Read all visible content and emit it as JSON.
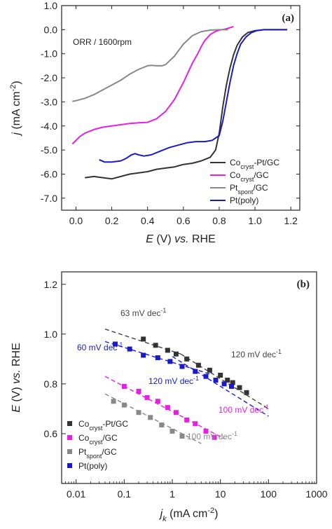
{
  "chart_data": [
    {
      "panel_tag": "(a)",
      "type": "line",
      "annotation": "ORR / 1600rpm",
      "xlabel": {
        "italic": "E",
        "mid": " (V) ",
        "italic2": "vs.",
        "tail": " RHE"
      },
      "ylabel": {
        "italic": "j",
        "tail": " (mA cm",
        "sup": "-2",
        "close": ")"
      },
      "xlim": [
        -0.08,
        1.25
      ],
      "ylim": [
        -7.5,
        1.0
      ],
      "xticks": [
        0.0,
        0.2,
        0.4,
        0.6,
        0.8,
        1.0,
        1.2
      ],
      "xtick_labels": [
        "0.0",
        "0.2",
        "0.4",
        "0.6",
        "0.8",
        "1.0",
        "1.2"
      ],
      "yticks": [
        1.0,
        0.0,
        -1.0,
        -2.0,
        -3.0,
        -4.0,
        -5.0,
        -6.0,
        -7.0
      ],
      "ytick_labels": [
        "1.0",
        "0.0",
        "-1.0",
        "-2.0",
        "-3.0",
        "-4.0",
        "-5.0",
        "-6.0",
        "-7.0"
      ],
      "legend_position": "bottom-right",
      "series": [
        {
          "name": {
            "base": "Co",
            "sub": "cryst",
            "tail": "-Pt/GC"
          },
          "color": "#333333",
          "x": [
            0.05,
            0.1,
            0.15,
            0.2,
            0.25,
            0.3,
            0.35,
            0.4,
            0.45,
            0.5,
            0.55,
            0.6,
            0.65,
            0.7,
            0.75,
            0.78,
            0.8,
            0.82,
            0.84,
            0.86,
            0.88,
            0.9,
            0.93,
            0.96,
            1.0,
            1.05,
            1.1,
            1.15,
            1.18
          ],
          "y": [
            -6.15,
            -6.1,
            -6.15,
            -6.2,
            -6.1,
            -6.0,
            -5.95,
            -5.9,
            -5.8,
            -5.75,
            -5.7,
            -5.6,
            -5.55,
            -5.45,
            -5.3,
            -5.0,
            -4.3,
            -3.2,
            -2.3,
            -1.6,
            -1.05,
            -0.65,
            -0.3,
            -0.12,
            -0.04,
            0.0,
            0.0,
            0.0,
            0.0
          ]
        },
        {
          "name": {
            "base": "Co",
            "sub": "cryst",
            "tail": "/GC"
          },
          "color": "#e61ee6",
          "x": [
            -0.02,
            0.0,
            0.02,
            0.05,
            0.1,
            0.15,
            0.2,
            0.25,
            0.3,
            0.35,
            0.4,
            0.45,
            0.5,
            0.55,
            0.6,
            0.65,
            0.68,
            0.7,
            0.72,
            0.75,
            0.78,
            0.8,
            0.83,
            0.86,
            0.88
          ],
          "y": [
            -4.75,
            -4.6,
            -4.45,
            -4.3,
            -4.15,
            -4.05,
            -4.0,
            -3.95,
            -3.9,
            -3.87,
            -3.85,
            -3.7,
            -3.4,
            -2.9,
            -2.2,
            -1.4,
            -1.0,
            -0.7,
            -0.45,
            -0.2,
            -0.07,
            -0.02,
            0.02,
            0.08,
            0.13
          ]
        },
        {
          "name": {
            "base": "Pt",
            "sub": "spont",
            "tail": "/GC"
          },
          "color": "#888888",
          "x": [
            -0.02,
            0.0,
            0.05,
            0.1,
            0.15,
            0.2,
            0.25,
            0.3,
            0.35,
            0.4,
            0.42,
            0.45,
            0.48,
            0.5,
            0.55,
            0.6,
            0.65,
            0.7,
            0.75,
            0.8,
            0.85
          ],
          "y": [
            -2.98,
            -2.95,
            -2.85,
            -2.7,
            -2.5,
            -2.3,
            -2.1,
            -1.85,
            -1.65,
            -1.5,
            -1.48,
            -1.5,
            -1.5,
            -1.45,
            -1.1,
            -0.6,
            -0.25,
            -0.08,
            -0.02,
            0.0,
            0.0
          ]
        },
        {
          "name": {
            "base": "Pt(poly)",
            "sub": "",
            "tail": ""
          },
          "color": "#1a1acc",
          "x": [
            0.13,
            0.16,
            0.2,
            0.25,
            0.28,
            0.31,
            0.33,
            0.35,
            0.38,
            0.42,
            0.47,
            0.52,
            0.57,
            0.62,
            0.67,
            0.72,
            0.76,
            0.8,
            0.82,
            0.84,
            0.86,
            0.88,
            0.9,
            0.92,
            0.95,
            0.98,
            1.01,
            1.05,
            1.1,
            1.15,
            1.18
          ],
          "y": [
            -5.4,
            -5.5,
            -5.5,
            -5.45,
            -5.35,
            -5.2,
            -5.15,
            -5.2,
            -5.25,
            -5.2,
            -5.05,
            -4.9,
            -4.8,
            -4.7,
            -4.65,
            -4.65,
            -4.6,
            -4.4,
            -3.8,
            -3.0,
            -2.2,
            -1.5,
            -1.0,
            -0.6,
            -0.3,
            -0.12,
            -0.04,
            0.0,
            0.0,
            0.0,
            0.0
          ]
        }
      ]
    },
    {
      "panel_tag": "(b)",
      "type": "scatter",
      "xscale": "log",
      "xlabel": {
        "italic": "j",
        "sub": "k",
        "tail": " (mA cm",
        "sup": "-2",
        "close": ")"
      },
      "ylabel": {
        "italic": "E",
        "mid": " (V) ",
        "italic2": "vs.",
        "tail": " RHE"
      },
      "xlim": [
        0.005,
        1000
      ],
      "ylim": [
        0.4,
        1.25
      ],
      "xticks": [
        0.01,
        0.1,
        1,
        10,
        100,
        1000
      ],
      "xtick_labels": [
        "0.01",
        "0.1",
        "1",
        "10",
        "100",
        "1000"
      ],
      "yticks": [
        0.6,
        0.8,
        1.0,
        1.2
      ],
      "ytick_labels": [
        "0.6",
        "0.8",
        "1.0",
        "1.2"
      ],
      "legend_position": "bottom-left",
      "series": [
        {
          "name": {
            "base": "Co",
            "sub": "cryst",
            "tail": "-Pt/GC"
          },
          "color": "#333333",
          "x": [
            0.25,
            0.45,
            0.8,
            1.2,
            2.0,
            3.5,
            6.0,
            10,
            14,
            18,
            25,
            35
          ],
          "y": [
            0.98,
            0.955,
            0.935,
            0.92,
            0.9,
            0.875,
            0.855,
            0.835,
            0.815,
            0.805,
            0.785,
            0.765
          ]
        },
        {
          "name": {
            "base": "Co",
            "sub": "cryst",
            "tail": "/GC"
          },
          "color": "#e61ee6",
          "x": [
            0.1,
            0.2,
            0.3,
            0.5,
            0.8,
            1.2,
            2.0,
            3.0,
            5.0,
            7.5
          ],
          "y": [
            0.79,
            0.77,
            0.745,
            0.73,
            0.705,
            0.685,
            0.655,
            0.64,
            0.61,
            0.585
          ]
        },
        {
          "name": {
            "base": "Pt",
            "sub": "spont",
            "tail": "/GC"
          },
          "color": "#888888",
          "x": [
            0.06,
            0.1,
            0.2,
            0.35,
            0.6,
            1.0,
            1.6
          ],
          "y": [
            0.73,
            0.715,
            0.685,
            0.665,
            0.635,
            0.61,
            0.59
          ]
        },
        {
          "name": {
            "base": "Pt(poly)",
            "sub": "",
            "tail": ""
          },
          "color": "#1a1acc",
          "x": [
            0.065,
            0.13,
            0.25,
            0.5,
            0.9,
            1.6,
            3.0,
            5.0,
            8.0,
            12,
            17
          ],
          "y": [
            0.96,
            0.94,
            0.915,
            0.905,
            0.89,
            0.87,
            0.85,
            0.83,
            0.815,
            0.8,
            0.79
          ]
        }
      ],
      "fit_lines": [
        {
          "label": "63 mV dec",
          "sup": "-1",
          "color": "#444444",
          "x": [
            0.04,
            1.5
          ],
          "y": [
            1.02,
            0.92
          ]
        },
        {
          "label": "120 mV dec",
          "sup": "-1",
          "color": "#444444",
          "x": [
            1.5,
            100
          ],
          "y": [
            0.92,
            0.7
          ]
        },
        {
          "label": "60 mV dec",
          "sup": "-1",
          "color": "#1a1acc",
          "x": [
            0.04,
            6
          ],
          "y": [
            0.97,
            0.84
          ]
        },
        {
          "label": "120 mV dec",
          "sup": "-1",
          "color": "#1a1acc",
          "x": [
            1.0,
            100
          ],
          "y": [
            0.91,
            0.67
          ]
        },
        {
          "label": "100 mV dec",
          "sup": "-1",
          "color": "#e61ee6",
          "x": [
            0.04,
            12
          ],
          "y": [
            0.83,
            0.58
          ]
        },
        {
          "label": "100 mV dec",
          "sup": "-1",
          "color": "#888888",
          "x": [
            0.04,
            4
          ],
          "y": [
            0.76,
            0.56
          ]
        }
      ]
    }
  ]
}
